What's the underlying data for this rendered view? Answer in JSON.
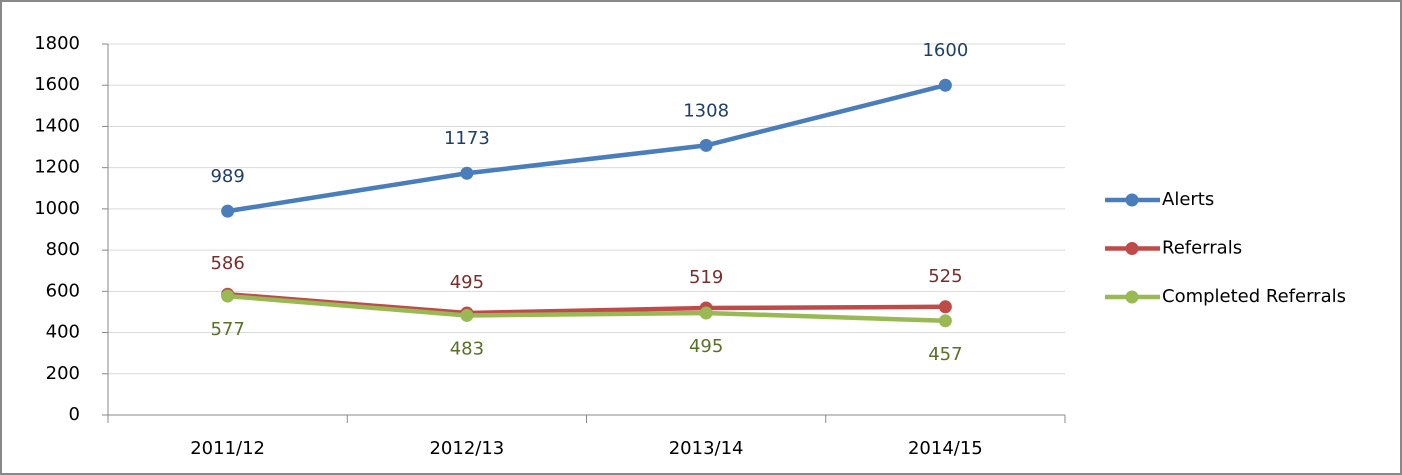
{
  "chart_data": {
    "type": "line",
    "categories": [
      "2011/12",
      "2012/13",
      "2013/14",
      "2014/15"
    ],
    "series": [
      {
        "name": "Alerts",
        "color": "#4a7ebb",
        "label_color": "#1f3f66",
        "values": [
          989,
          1173,
          1308,
          1600
        ]
      },
      {
        "name": "Referrals",
        "color": "#be4b48",
        "label_color": "#7a2e2c",
        "values": [
          586,
          495,
          519,
          525
        ]
      },
      {
        "name": "Completed Referrals",
        "color": "#98b954",
        "label_color": "#5a7028",
        "values": [
          577,
          483,
          495,
          457
        ]
      }
    ],
    "ylim": [
      0,
      1800
    ],
    "yticks": [
      0,
      200,
      400,
      600,
      800,
      1000,
      1200,
      1400,
      1600,
      1800
    ],
    "grid": true,
    "legend": "right"
  }
}
